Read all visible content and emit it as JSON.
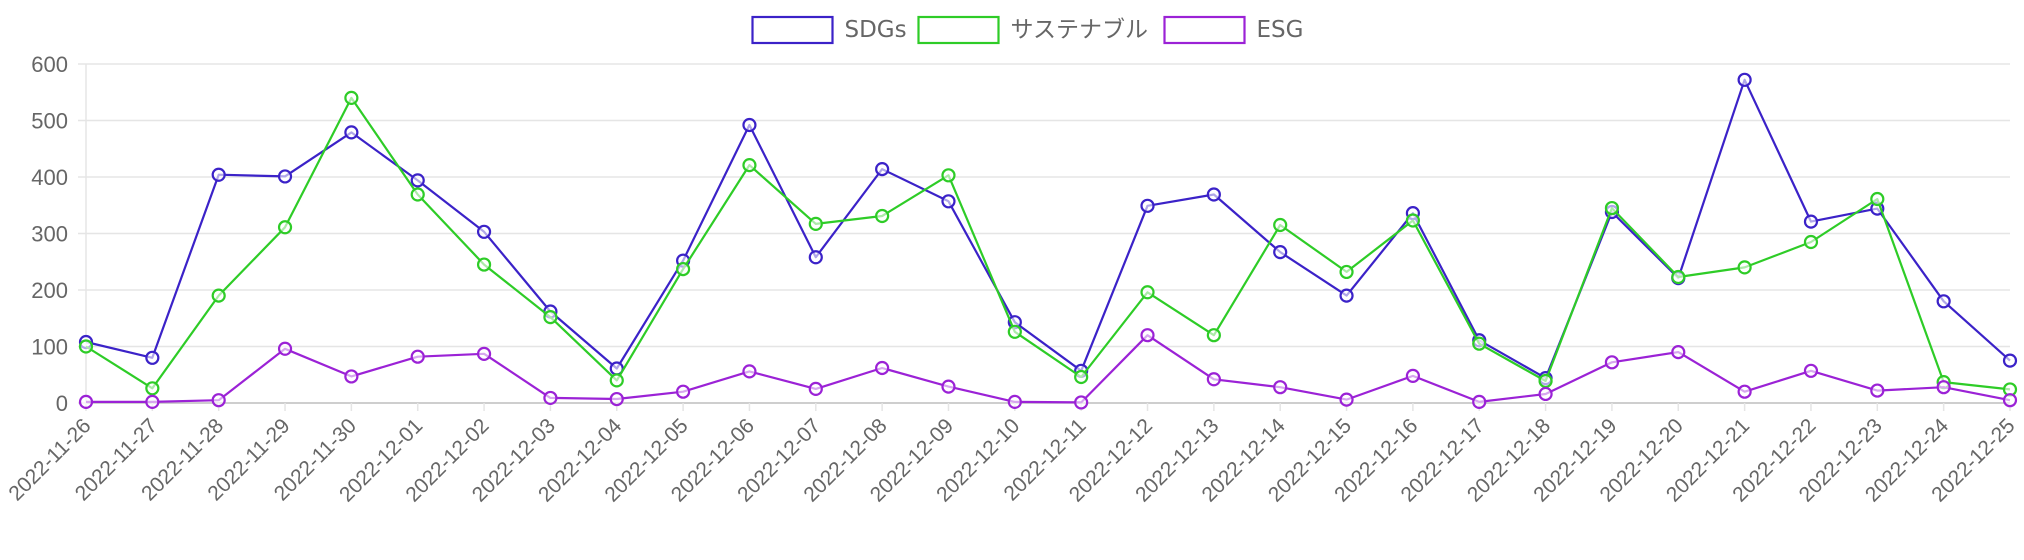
{
  "chart_data": {
    "type": "line",
    "categories": [
      "2022-11-26",
      "2022-11-27",
      "2022-11-28",
      "2022-11-29",
      "2022-11-30",
      "2022-12-01",
      "2022-12-02",
      "2022-12-03",
      "2022-12-04",
      "2022-12-05",
      "2022-12-06",
      "2022-12-07",
      "2022-12-08",
      "2022-12-09",
      "2022-12-10",
      "2022-12-11",
      "2022-12-12",
      "2022-12-13",
      "2022-12-14",
      "2022-12-15",
      "2022-12-16",
      "2022-12-17",
      "2022-12-18",
      "2022-12-19",
      "2022-12-20",
      "2022-12-21",
      "2022-12-22",
      "2022-12-23",
      "2022-12-24",
      "2022-12-25"
    ],
    "series": [
      {
        "name": "SDGs",
        "color": "#3b22c8",
        "values": [
          108,
          80,
          404,
          401,
          479,
          394,
          303,
          162,
          61,
          252,
          492,
          258,
          414,
          357,
          143,
          57,
          349,
          369,
          267,
          190,
          336,
          111,
          44,
          338,
          221,
          572,
          321,
          344,
          180,
          75
        ]
      },
      {
        "name": "サステナブル",
        "color": "#2ecc27",
        "values": [
          100,
          26,
          190,
          311,
          540,
          369,
          245,
          152,
          40,
          237,
          421,
          317,
          331,
          403,
          126,
          46,
          196,
          120,
          315,
          232,
          323,
          105,
          39,
          345,
          223,
          240,
          285,
          361,
          37,
          24
        ]
      },
      {
        "name": "ESG",
        "color": "#9b22d6",
        "values": [
          2,
          2,
          5,
          96,
          47,
          82,
          87,
          9,
          7,
          20,
          56,
          25,
          62,
          29,
          2,
          1,
          120,
          42,
          28,
          6,
          48,
          2,
          16,
          72,
          90,
          20,
          57,
          22,
          28,
          5
        ]
      }
    ],
    "ylim": [
      0,
      600
    ],
    "yticks": [
      0,
      100,
      200,
      300,
      400,
      500,
      600
    ],
    "grid": true,
    "legend_position": "top-center"
  }
}
